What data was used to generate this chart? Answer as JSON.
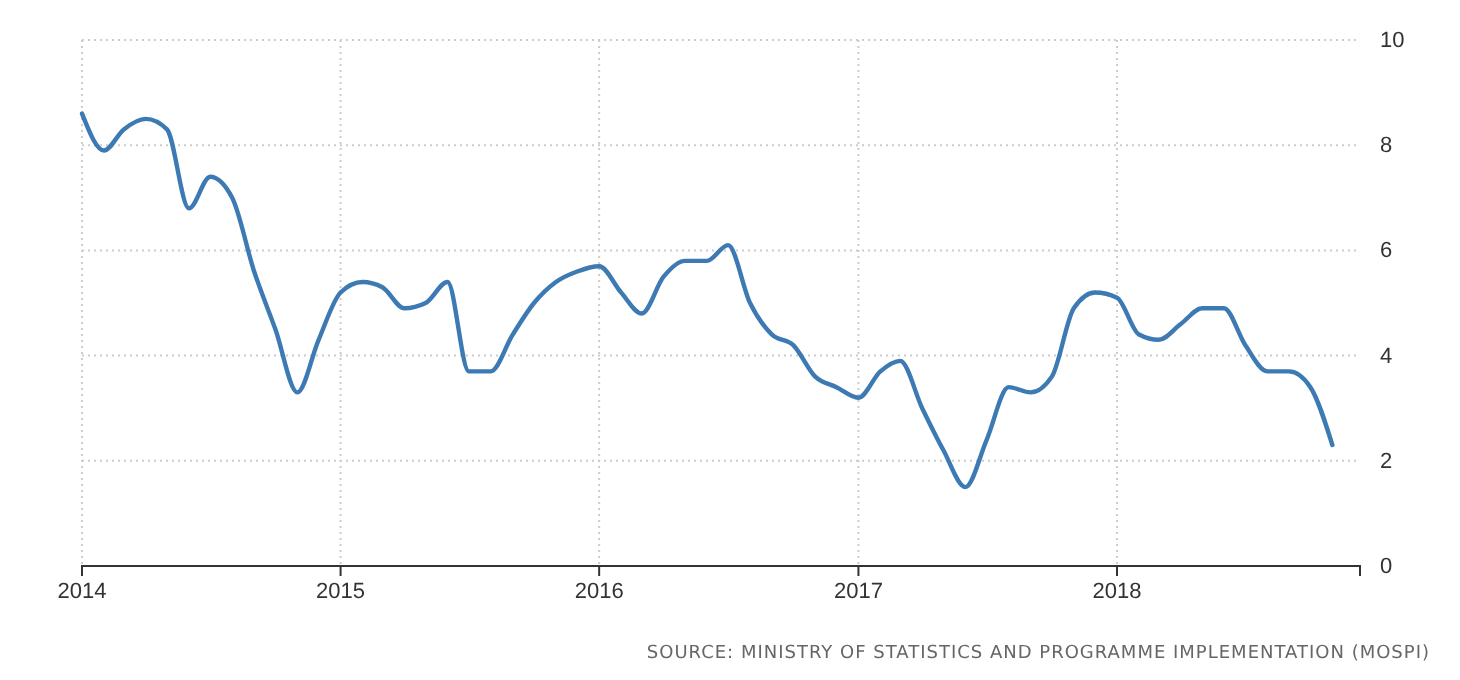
{
  "chart_data": {
    "type": "line",
    "x": [
      "2014-01",
      "2014-02",
      "2014-03",
      "2014-04",
      "2014-05",
      "2014-06",
      "2014-07",
      "2014-08",
      "2014-09",
      "2014-10",
      "2014-11",
      "2014-12",
      "2015-01",
      "2015-02",
      "2015-03",
      "2015-04",
      "2015-05",
      "2015-06",
      "2015-07",
      "2015-08",
      "2015-09",
      "2015-10",
      "2015-11",
      "2015-12",
      "2016-01",
      "2016-02",
      "2016-03",
      "2016-04",
      "2016-05",
      "2016-06",
      "2016-07",
      "2016-08",
      "2016-09",
      "2016-10",
      "2016-11",
      "2016-12",
      "2017-01",
      "2017-02",
      "2017-03",
      "2017-04",
      "2017-05",
      "2017-06",
      "2017-07",
      "2017-08",
      "2017-09",
      "2017-10",
      "2017-11",
      "2017-12",
      "2018-01",
      "2018-02",
      "2018-03",
      "2018-04",
      "2018-05",
      "2018-06",
      "2018-07",
      "2018-08",
      "2018-09",
      "2018-10",
      "2018-11"
    ],
    "series": [
      {
        "color": "#3d7ab3",
        "values": [
          8.6,
          7.9,
          8.3,
          8.5,
          8.3,
          6.8,
          7.4,
          7.0,
          5.6,
          4.5,
          3.3,
          4.3,
          5.2,
          5.4,
          5.3,
          4.9,
          5.0,
          5.4,
          3.7,
          3.7,
          4.4,
          5.0,
          5.4,
          5.6,
          5.7,
          5.2,
          4.8,
          5.5,
          5.8,
          5.8,
          6.1,
          5.0,
          4.4,
          4.2,
          3.6,
          3.4,
          3.2,
          3.7,
          3.9,
          3.0,
          2.2,
          1.5,
          2.4,
          3.4,
          3.3,
          3.6,
          4.9,
          5.2,
          5.1,
          4.4,
          4.3,
          4.6,
          4.9,
          4.9,
          4.2,
          3.7,
          3.7,
          3.4,
          2.3
        ]
      }
    ],
    "xlim": [
      "2014-01-01",
      "2018-12-10"
    ],
    "xticks": [
      {
        "value": "2014-01-01",
        "label": "2014"
      },
      {
        "value": "2015-01-01",
        "label": "2015"
      },
      {
        "value": "2016-01-01",
        "label": "2016"
      },
      {
        "value": "2017-01-01",
        "label": "2017"
      },
      {
        "value": "2018-01-01",
        "label": "2018"
      }
    ],
    "ylim": [
      0,
      10
    ],
    "yticks": [
      0,
      2,
      4,
      6,
      8,
      10
    ],
    "grid": true,
    "marker": "none",
    "line_style": "solid",
    "annotations": [
      "SOURCE: MINISTRY OF STATISTICS AND PROGRAMME IMPLEMENTATION (MOSPI)"
    ]
  }
}
